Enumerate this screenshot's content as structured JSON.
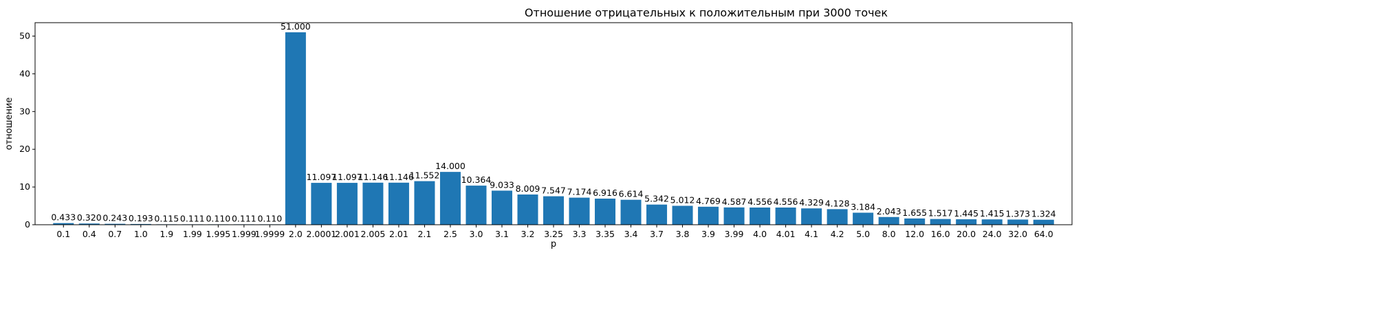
{
  "chart_data": {
    "type": "bar",
    "title": "Отношение отрицательных к положительным при 3000 точек",
    "xlabel": "p",
    "ylabel": "отношение",
    "ylim": [
      0,
      53.55
    ],
    "yticks": [
      0,
      10,
      20,
      30,
      40,
      50
    ],
    "grid": false,
    "bar_color": "#1f77b4",
    "categories": [
      "0.1",
      "0.4",
      "0.7",
      "1.0",
      "1.9",
      "1.99",
      "1.995",
      "1.999",
      "1.9999",
      "2.0",
      "2.0001",
      "2.001",
      "2.005",
      "2.01",
      "2.1",
      "2.5",
      "3.0",
      "3.1",
      "3.2",
      "3.25",
      "3.3",
      "3.35",
      "3.4",
      "3.7",
      "3.8",
      "3.9",
      "3.99",
      "4.0",
      "4.01",
      "4.1",
      "4.2",
      "5.0",
      "8.0",
      "12.0",
      "16.0",
      "20.0",
      "24.0",
      "32.0",
      "64.0"
    ],
    "values": [
      0.433,
      0.32,
      0.243,
      0.193,
      0.115,
      0.111,
      0.11,
      0.111,
      0.11,
      51.0,
      11.097,
      11.097,
      11.146,
      11.146,
      11.552,
      14.0,
      10.364,
      9.033,
      8.009,
      7.547,
      7.174,
      6.916,
      6.614,
      5.342,
      5.012,
      4.769,
      4.587,
      4.556,
      4.556,
      4.329,
      4.128,
      3.184,
      2.043,
      1.655,
      1.517,
      1.445,
      1.415,
      1.373,
      1.324
    ],
    "value_labels": [
      "0.433",
      "0.320",
      "0.243",
      "0.193",
      "0.115",
      "0.111",
      "0.110",
      "0.111",
      "0.110",
      "51.000",
      "11.097",
      "11.097",
      "11.146",
      "11.146",
      "11.552",
      "14.000",
      "10.364",
      "9.033",
      "8.009",
      "7.547",
      "7.174",
      "6.916",
      "6.614",
      "5.342",
      "5.012",
      "4.769",
      "4.587",
      "4.556",
      "4.556",
      "4.329",
      "4.128",
      "3.184",
      "2.043",
      "1.655",
      "1.517",
      "1.445",
      "1.415",
      "1.373",
      "1.324"
    ]
  }
}
